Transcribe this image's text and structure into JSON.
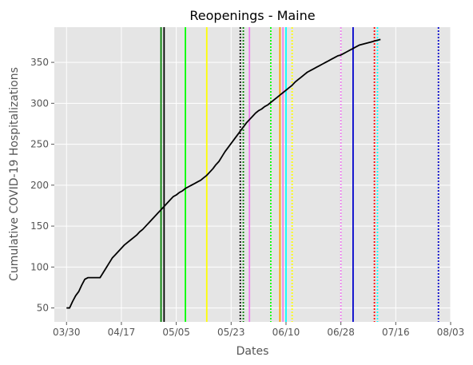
{
  "chart_data": {
    "type": "line",
    "title": "Reopenings - Maine",
    "xlabel": "Dates",
    "ylabel": "Cumulative COVID-19 Hospitalizations",
    "x_type": "date",
    "xlim": [
      "2020-03-26",
      "2020-08-03"
    ],
    "ylim": [
      33,
      393
    ],
    "x_ticks": [
      {
        "date": "2020-03-30",
        "label": "03/30"
      },
      {
        "date": "2020-04-17",
        "label": "04/17"
      },
      {
        "date": "2020-05-05",
        "label": "05/05"
      },
      {
        "date": "2020-05-23",
        "label": "05/23"
      },
      {
        "date": "2020-06-10",
        "label": "06/10"
      },
      {
        "date": "2020-06-28",
        "label": "06/28"
      },
      {
        "date": "2020-07-16",
        "label": "07/16"
      },
      {
        "date": "2020-08-03",
        "label": "08/03"
      }
    ],
    "y_ticks": [
      50,
      100,
      150,
      200,
      250,
      300,
      350
    ],
    "grid": true,
    "background": "#e5e5e5",
    "series": [
      {
        "color": "#000000",
        "points": [
          [
            "2020-03-30",
            50
          ],
          [
            "2020-03-31",
            50
          ],
          [
            "2020-04-01",
            58
          ],
          [
            "2020-04-02",
            65
          ],
          [
            "2020-04-03",
            70
          ],
          [
            "2020-04-04",
            78
          ],
          [
            "2020-04-05",
            85
          ],
          [
            "2020-04-06",
            87
          ],
          [
            "2020-04-07",
            87
          ],
          [
            "2020-04-08",
            87
          ],
          [
            "2020-04-09",
            87
          ],
          [
            "2020-04-10",
            87
          ],
          [
            "2020-04-11",
            93
          ],
          [
            "2020-04-12",
            99
          ],
          [
            "2020-04-13",
            105
          ],
          [
            "2020-04-14",
            111
          ],
          [
            "2020-04-15",
            115
          ],
          [
            "2020-04-16",
            119
          ],
          [
            "2020-04-17",
            123
          ],
          [
            "2020-04-18",
            127
          ],
          [
            "2020-04-19",
            130
          ],
          [
            "2020-04-20",
            133
          ],
          [
            "2020-04-21",
            136
          ],
          [
            "2020-04-22",
            139
          ],
          [
            "2020-04-23",
            143
          ],
          [
            "2020-04-24",
            146
          ],
          [
            "2020-04-25",
            150
          ],
          [
            "2020-04-26",
            154
          ],
          [
            "2020-04-27",
            158
          ],
          [
            "2020-04-28",
            162
          ],
          [
            "2020-04-29",
            166
          ],
          [
            "2020-04-30",
            170
          ],
          [
            "2020-05-01",
            174
          ],
          [
            "2020-05-02",
            178
          ],
          [
            "2020-05-03",
            182
          ],
          [
            "2020-05-04",
            186
          ],
          [
            "2020-05-05",
            188
          ],
          [
            "2020-05-06",
            191
          ],
          [
            "2020-05-07",
            193
          ],
          [
            "2020-05-08",
            196
          ],
          [
            "2020-05-09",
            198
          ],
          [
            "2020-05-10",
            200
          ],
          [
            "2020-05-11",
            202
          ],
          [
            "2020-05-12",
            204
          ],
          [
            "2020-05-13",
            206
          ],
          [
            "2020-05-14",
            209
          ],
          [
            "2020-05-15",
            212
          ],
          [
            "2020-05-16",
            216
          ],
          [
            "2020-05-17",
            220
          ],
          [
            "2020-05-18",
            225
          ],
          [
            "2020-05-19",
            229
          ],
          [
            "2020-05-20",
            235
          ],
          [
            "2020-05-21",
            241
          ],
          [
            "2020-05-22",
            246
          ],
          [
            "2020-05-23",
            251
          ],
          [
            "2020-05-24",
            256
          ],
          [
            "2020-05-25",
            261
          ],
          [
            "2020-05-26",
            266
          ],
          [
            "2020-05-27",
            271
          ],
          [
            "2020-05-28",
            276
          ],
          [
            "2020-05-29",
            280
          ],
          [
            "2020-05-30",
            284
          ],
          [
            "2020-05-31",
            288
          ],
          [
            "2020-06-01",
            291
          ],
          [
            "2020-06-02",
            293
          ],
          [
            "2020-06-03",
            296
          ],
          [
            "2020-06-04",
            298
          ],
          [
            "2020-06-05",
            301
          ],
          [
            "2020-06-06",
            304
          ],
          [
            "2020-06-07",
            307
          ],
          [
            "2020-06-08",
            310
          ],
          [
            "2020-06-09",
            313
          ],
          [
            "2020-06-10",
            316
          ],
          [
            "2020-06-11",
            319
          ],
          [
            "2020-06-12",
            322
          ],
          [
            "2020-06-13",
            326
          ],
          [
            "2020-06-14",
            329
          ],
          [
            "2020-06-15",
            332
          ],
          [
            "2020-06-16",
            335
          ],
          [
            "2020-06-17",
            338
          ],
          [
            "2020-06-18",
            340
          ],
          [
            "2020-06-19",
            342
          ],
          [
            "2020-06-20",
            344
          ],
          [
            "2020-06-21",
            346
          ],
          [
            "2020-06-22",
            348
          ],
          [
            "2020-06-23",
            350
          ],
          [
            "2020-06-24",
            352
          ],
          [
            "2020-06-25",
            354
          ],
          [
            "2020-06-26",
            356
          ],
          [
            "2020-06-27",
            358
          ],
          [
            "2020-06-28",
            359
          ],
          [
            "2020-06-29",
            361
          ],
          [
            "2020-06-30",
            363
          ],
          [
            "2020-07-01",
            365
          ],
          [
            "2020-07-02",
            367
          ],
          [
            "2020-07-03",
            369
          ],
          [
            "2020-07-04",
            371
          ],
          [
            "2020-07-05",
            372
          ],
          [
            "2020-07-06",
            373
          ],
          [
            "2020-07-07",
            374
          ],
          [
            "2020-07-08",
            375
          ],
          [
            "2020-07-09",
            376
          ],
          [
            "2020-07-10",
            377
          ],
          [
            "2020-07-11",
            378
          ]
        ]
      }
    ],
    "vertical_lines": [
      {
        "date": "2020-04-30",
        "color": "#008000",
        "style": "solid"
      },
      {
        "date": "2020-05-01",
        "color": "#000000",
        "style": "solid"
      },
      {
        "date": "2020-05-08",
        "color": "#00ff00",
        "style": "solid"
      },
      {
        "date": "2020-05-15",
        "color": "#ffff00",
        "style": "solid"
      },
      {
        "date": "2020-05-26",
        "color": "#000000",
        "style": "dotted"
      },
      {
        "date": "2020-05-27",
        "color": "#008000",
        "style": "dotted"
      },
      {
        "date": "2020-05-29",
        "color": "#ee82ee",
        "style": "solid"
      },
      {
        "date": "2020-06-05",
        "color": "#00ff00",
        "style": "dotted"
      },
      {
        "date": "2020-06-08",
        "color": "#ffa500",
        "style": "solid"
      },
      {
        "date": "2020-06-09",
        "color": "#ee82ee",
        "style": "solid"
      },
      {
        "date": "2020-06-10",
        "color": "#00ffff",
        "style": "solid"
      },
      {
        "date": "2020-06-12",
        "color": "#ffff00",
        "style": "dotted"
      },
      {
        "date": "2020-06-28",
        "color": "#ee82ee",
        "style": "dotted"
      },
      {
        "date": "2020-07-02",
        "color": "#0000cc",
        "style": "solid"
      },
      {
        "date": "2020-07-09",
        "color": "#ff0000",
        "style": "dotted"
      },
      {
        "date": "2020-07-10",
        "color": "#00ffff",
        "style": "dotted"
      },
      {
        "date": "2020-07-30",
        "color": "#0000cc",
        "style": "dotted"
      }
    ]
  }
}
